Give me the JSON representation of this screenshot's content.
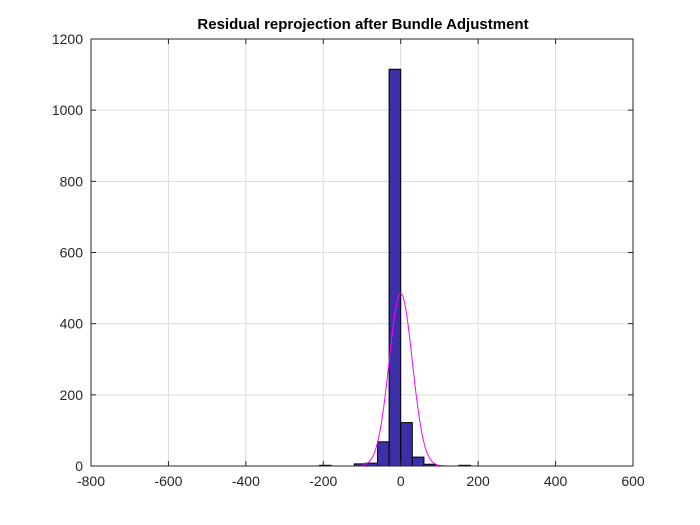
{
  "colors": {
    "background": "#ffffff",
    "bar_fill": "#3d2fa8",
    "bar_edge": "#000000",
    "fit_line": "#ff00ff",
    "grid": "#dcdcdc",
    "axes": "#262626"
  },
  "chart_data": {
    "type": "bar",
    "subtype": "histogram",
    "title": "Residual reprojection after Bundle Adjustment",
    "xlabel": "",
    "ylabel": "",
    "xlim": [
      -800,
      600
    ],
    "ylim": [
      0,
      1200
    ],
    "xticks": [
      -800,
      -600,
      -400,
      -200,
      0,
      200,
      400,
      600
    ],
    "yticks": [
      0,
      200,
      400,
      600,
      800,
      1000,
      1200
    ],
    "grid": true,
    "bin_width": 30,
    "bins": [
      {
        "x0": -210,
        "x1": -180,
        "count": 2
      },
      {
        "x0": -120,
        "x1": -90,
        "count": 6
      },
      {
        "x0": -90,
        "x1": -60,
        "count": 8
      },
      {
        "x0": -60,
        "x1": -30,
        "count": 68
      },
      {
        "x0": -30,
        "x1": 0,
        "count": 1115
      },
      {
        "x0": 0,
        "x1": 30,
        "count": 122
      },
      {
        "x0": 30,
        "x1": 60,
        "count": 25
      },
      {
        "x0": 60,
        "x1": 90,
        "count": 5
      },
      {
        "x0": 150,
        "x1": 180,
        "count": 2
      }
    ],
    "fit_curve": {
      "type": "normal",
      "mean": 0,
      "sigma": 30,
      "peak": 485,
      "x_range": [
        -750,
        600
      ]
    }
  }
}
